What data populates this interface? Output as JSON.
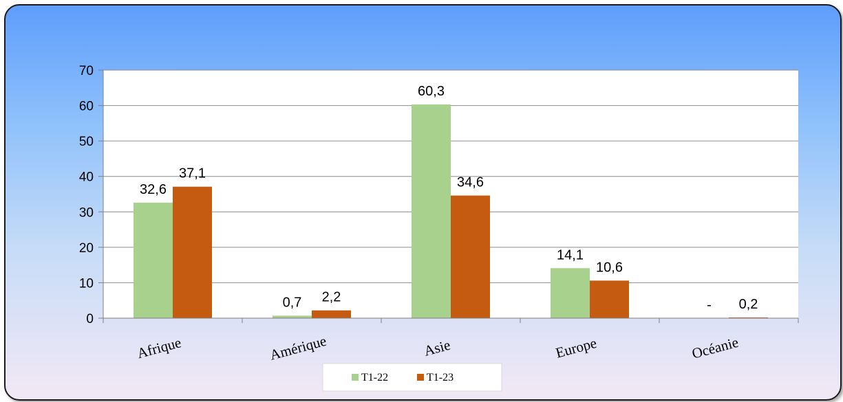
{
  "chart_data": {
    "type": "bar",
    "categories": [
      "Afrique",
      "Amérique",
      "Asie",
      "Europe",
      "Océanie"
    ],
    "series": [
      {
        "name": "T1-22",
        "color": "#a9d18e",
        "values": [
          32.6,
          0.7,
          60.3,
          14.1,
          0
        ],
        "labels": [
          "32,6",
          "0,7",
          "60,3",
          "14,1",
          "-"
        ]
      },
      {
        "name": "T1-23",
        "color": "#c55a11",
        "values": [
          37.1,
          2.2,
          34.6,
          10.6,
          0.2
        ],
        "labels": [
          "37,1",
          "2,2",
          "34,6",
          "10,6",
          "0,2"
        ]
      }
    ],
    "yticks": [
      "0",
      "10",
      "20",
      "30",
      "40",
      "50",
      "60",
      "70"
    ],
    "ylim": [
      0,
      70
    ],
    "grid": true,
    "legend_position": "bottom"
  }
}
